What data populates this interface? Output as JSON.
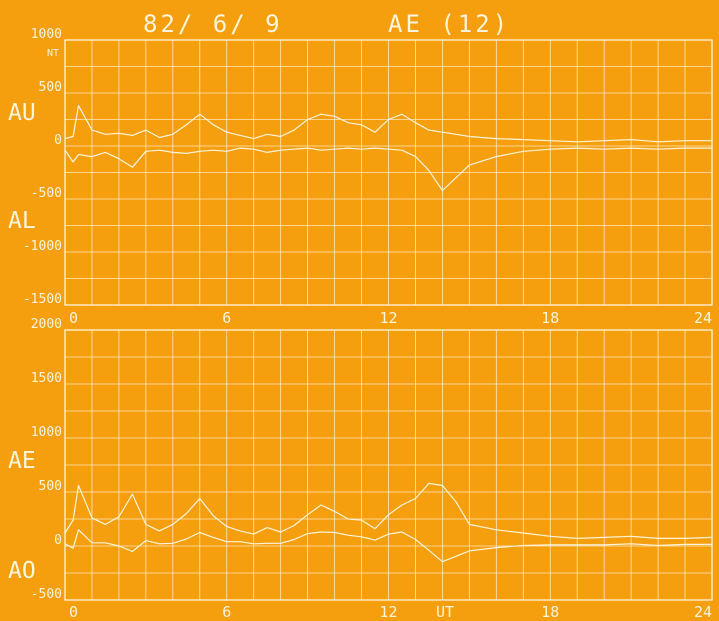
{
  "header": {
    "date": "82/ 6/ 9",
    "index": "AE (12)"
  },
  "colors": {
    "background": "#f59f0e",
    "ink": "#fff4dc"
  },
  "chart_data": [
    {
      "type": "line",
      "name_labels": [
        "AU",
        "AL"
      ],
      "unit": "NT",
      "xlim": [
        0,
        24
      ],
      "ylim": [
        -1500,
        1000
      ],
      "y_ticks": [
        1000,
        500,
        0,
        -500,
        -1000,
        -1500
      ],
      "y_tick_labels": [
        "1000",
        "500",
        "0",
        "-500",
        "-1000",
        "-1500"
      ],
      "x_ticks": [
        0,
        6,
        12,
        18,
        24
      ],
      "x_tick_labels": [
        "0",
        "6",
        "12",
        "18",
        "24"
      ],
      "x_label": "",
      "grid": true,
      "series": [
        {
          "x": [
            0,
            0.3,
            0.5,
            1,
            1.5,
            2,
            2.5,
            3,
            3.5,
            4,
            4.5,
            5,
            5.5,
            6,
            6.5,
            7,
            7.5,
            8,
            8.5,
            9,
            9.5,
            10,
            10.5,
            11,
            11.5,
            12,
            12.5,
            13,
            13.5,
            14,
            14.5,
            15,
            16,
            17,
            18,
            19,
            20,
            21,
            22,
            23,
            24
          ],
          "y": [
            70,
            90,
            380,
            150,
            110,
            120,
            100,
            150,
            80,
            110,
            200,
            300,
            200,
            130,
            100,
            70,
            110,
            90,
            150,
            250,
            300,
            280,
            220,
            200,
            130,
            250,
            300,
            220,
            150,
            130,
            110,
            90,
            70,
            60,
            50,
            40,
            50,
            60,
            40,
            50,
            50
          ]
        },
        {
          "x": [
            0,
            0.3,
            0.5,
            1,
            1.5,
            2,
            2.5,
            3,
            3.5,
            4,
            4.5,
            5,
            5.5,
            6,
            6.5,
            7,
            7.5,
            8,
            8.5,
            9,
            9.5,
            10,
            10.5,
            11,
            11.5,
            12,
            12.5,
            13,
            13.5,
            14,
            14.5,
            15,
            16,
            17,
            18,
            19,
            20,
            21,
            22,
            23,
            24
          ],
          "y": [
            -40,
            -150,
            -80,
            -100,
            -60,
            -120,
            -200,
            -50,
            -40,
            -60,
            -70,
            -50,
            -40,
            -50,
            -20,
            -30,
            -60,
            -40,
            -30,
            -20,
            -40,
            -30,
            -20,
            -30,
            -20,
            -30,
            -40,
            -100,
            -230,
            -420,
            -300,
            -180,
            -100,
            -50,
            -30,
            -20,
            -30,
            -20,
            -30,
            -20,
            -20
          ]
        }
      ]
    },
    {
      "type": "line",
      "name_labels": [
        "AE",
        "AO"
      ],
      "xlim": [
        0,
        24
      ],
      "ylim": [
        -500,
        2000
      ],
      "y_ticks": [
        2000,
        1500,
        1000,
        500,
        0,
        -500
      ],
      "y_tick_labels": [
        "2000",
        "1500",
        "1000",
        "500",
        "0",
        "-500"
      ],
      "x_ticks": [
        0,
        6,
        12,
        18,
        24
      ],
      "x_tick_labels": [
        "0",
        "6",
        "12",
        "18",
        "24"
      ],
      "x_label": "UT",
      "grid": true,
      "series": [
        {
          "x": [
            0,
            0.3,
            0.5,
            1,
            1.5,
            2,
            2.5,
            3,
            3.5,
            4,
            4.5,
            5,
            5.5,
            6,
            6.5,
            7,
            7.5,
            8,
            8.5,
            9,
            9.5,
            10,
            10.5,
            11,
            11.5,
            12,
            12.5,
            13,
            13.5,
            14,
            14.5,
            15,
            16,
            17,
            18,
            19,
            20,
            21,
            22,
            23,
            24
          ],
          "y": [
            120,
            240,
            560,
            260,
            200,
            270,
            480,
            200,
            140,
            200,
            300,
            440,
            280,
            180,
            140,
            110,
            170,
            130,
            190,
            290,
            380,
            320,
            250,
            240,
            160,
            290,
            380,
            440,
            580,
            560,
            410,
            200,
            150,
            120,
            90,
            70,
            80,
            90,
            70,
            70,
            80
          ]
        },
        {
          "x": [
            0,
            0.3,
            0.5,
            1,
            1.5,
            2,
            2.5,
            3,
            3.5,
            4,
            4.5,
            5,
            5.5,
            6,
            6.5,
            7,
            7.5,
            8,
            8.5,
            9,
            9.5,
            10,
            10.5,
            11,
            11.5,
            12,
            12.5,
            13,
            13.5,
            14,
            14.5,
            15,
            16,
            17,
            18,
            19,
            20,
            21,
            22,
            23,
            24
          ],
          "y": [
            20,
            -20,
            150,
            30,
            30,
            0,
            -50,
            50,
            20,
            25,
            65,
            125,
            80,
            40,
            40,
            20,
            25,
            25,
            60,
            115,
            130,
            125,
            100,
            85,
            55,
            110,
            130,
            60,
            -40,
            -145,
            -95,
            -45,
            -15,
            5,
            10,
            10,
            10,
            20,
            5,
            15,
            15
          ]
        }
      ]
    }
  ]
}
